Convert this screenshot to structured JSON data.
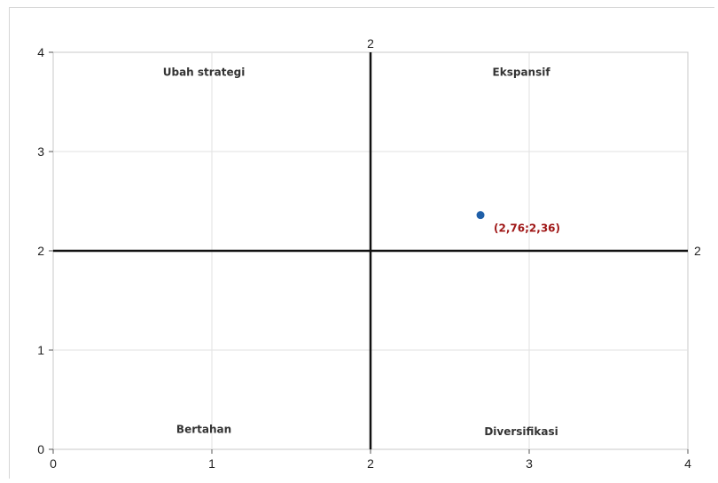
{
  "chart_data": {
    "type": "scatter",
    "title": "",
    "xlabel": "",
    "ylabel": "",
    "xlim": [
      0,
      4
    ],
    "ylim": [
      0,
      4
    ],
    "x_ticks": [
      "0",
      "1",
      "2",
      "3",
      "4"
    ],
    "y_ticks": [
      "0",
      "1",
      "2",
      "3",
      "4"
    ],
    "grid": true,
    "reference_lines": [
      {
        "axis": "x",
        "value": 2,
        "label": "2"
      },
      {
        "axis": "y",
        "value": 2,
        "label": "2"
      }
    ],
    "quadrant_labels": [
      {
        "text": "Ubah strategi",
        "x": 0.95,
        "y": 3.8
      },
      {
        "text": "Ekspansif",
        "x": 2.95,
        "y": 3.8
      },
      {
        "text": "Bertahan",
        "x": 0.95,
        "y": 0.2
      },
      {
        "text": "Diversifikasi",
        "x": 2.95,
        "y": 0.18
      }
    ],
    "points": [
      {
        "x": 2.76,
        "y": 2.36,
        "label": "(2,76;2,36)",
        "color": "#1f5fa8"
      }
    ],
    "colors": {
      "point": "#1f5fa8",
      "point_label": "#a01818",
      "reference_line": "#111111",
      "grid": "#e2e2e2"
    }
  }
}
